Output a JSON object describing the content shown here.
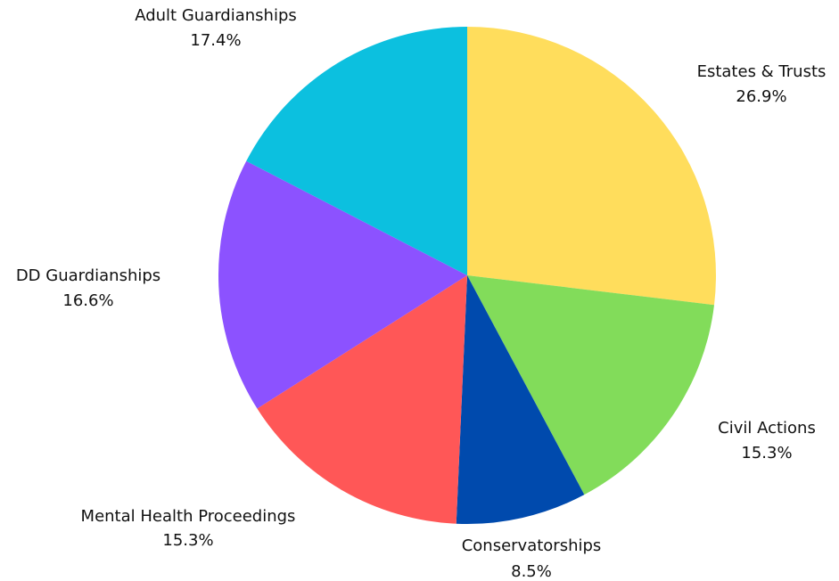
{
  "chart_data": {
    "type": "pie",
    "title": "",
    "start_angle_deg": 0,
    "direction": "clockwise",
    "slices": [
      {
        "label": "Estates & Trusts",
        "value": 26.9,
        "value_label": "26.9%",
        "color": "#FFDD5C"
      },
      {
        "label": "Civil Actions",
        "value": 15.3,
        "value_label": "15.3%",
        "color": "#82DC5A"
      },
      {
        "label": "Conservatorships",
        "value": 8.5,
        "value_label": "8.5%",
        "color": "#004AAD"
      },
      {
        "label": "Mental Health Proceedings",
        "value": 15.3,
        "value_label": "15.3%",
        "color": "#FF5757"
      },
      {
        "label": "DD Guardianships",
        "value": 16.6,
        "value_label": "16.6%",
        "color": "#8C52FF"
      },
      {
        "label": "Adult Guardianships",
        "value": 17.4,
        "value_label": "17.4%",
        "color": "#0CC0DF"
      }
    ]
  }
}
